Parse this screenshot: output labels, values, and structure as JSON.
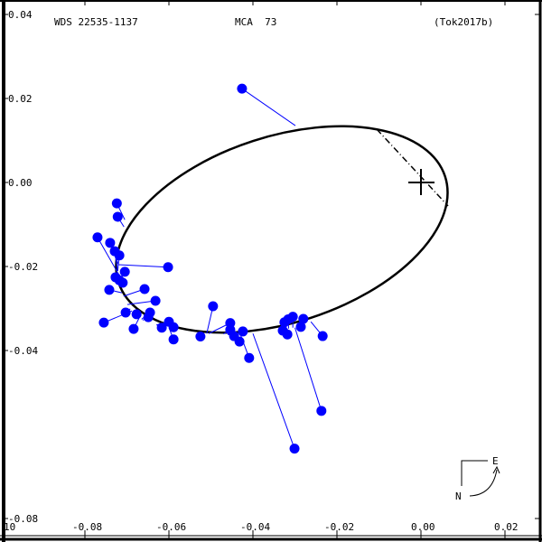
{
  "header": {
    "wds_id": "WDS 22535-1137",
    "discoverer": "MCA  73",
    "reference": "(Tok2017b)"
  },
  "compass": {
    "east_label": "E",
    "north_label": "N"
  },
  "colors": {
    "points": "#0000ff",
    "orbit": "#000000",
    "axes": "#000000",
    "background": "#ffffff"
  },
  "chart_data": {
    "type": "scatter",
    "title": "WDS 22535-1137   MCA  73   (Tok2017b)",
    "xlabel": "",
    "ylabel": "",
    "xlim": [
      -0.1,
      0.028
    ],
    "ylim": [
      -0.085,
      0.043
    ],
    "grid": false,
    "legend": "none",
    "x_ticks": [
      "-0.08",
      "-0.06",
      "-0.04",
      "-0.02",
      "0.00",
      "0.02"
    ],
    "y_ticks": [
      "0.04",
      "0.02",
      "0.00",
      "-0.02",
      "-0.04",
      "-0.08"
    ],
    "clipped_corner_label": "10",
    "primary_star": {
      "x": 0.0,
      "y": 0.0,
      "marker": "+"
    },
    "orbit_ellipse": {
      "center": [
        -0.0331,
        -0.0116
      ],
      "semi_major": 0.0409,
      "semi_minor": 0.0222,
      "rotation_deg": -18
    },
    "line_of_nodes": {
      "from": [
        -0.0105,
        0.0123
      ],
      "to": [
        0.0065,
        -0.006
      ],
      "style": "dash-dot"
    },
    "series": [
      {
        "name": "observations",
        "points": [
          {
            "x": -0.0426,
            "y": 0.0219,
            "ox": -0.0299,
            "oy": 0.0131
          },
          {
            "x": -0.0724,
            "y": -0.0054,
            "ox": -0.0705,
            "oy": -0.0093
          },
          {
            "x": -0.0722,
            "y": -0.0086,
            "ox": -0.0707,
            "oy": -0.011
          },
          {
            "x": -0.077,
            "y": -0.0135,
            "ox": -0.0718,
            "oy": -0.0226
          },
          {
            "x": -0.074,
            "y": -0.0148,
            "ox": -0.072,
            "oy": -0.02
          },
          {
            "x": -0.0729,
            "y": -0.0168,
            "ox": -0.0722,
            "oy": -0.0215
          },
          {
            "x": -0.0718,
            "y": -0.0178,
            "ox": -0.0722,
            "oy": -0.0215
          },
          {
            "x": -0.0602,
            "y": -0.0206,
            "ox": -0.072,
            "oy": -0.02
          },
          {
            "x": -0.0705,
            "y": -0.0217,
            "ox": -0.0718,
            "oy": -0.0237
          },
          {
            "x": -0.0727,
            "y": -0.023,
            "ox": -0.0718,
            "oy": -0.024
          },
          {
            "x": -0.0718,
            "y": -0.0237,
            "ox": -0.0718,
            "oy": -0.0245
          },
          {
            "x": -0.071,
            "y": -0.0243,
            "ox": -0.0716,
            "oy": -0.0252
          },
          {
            "x": -0.0742,
            "y": -0.026,
            "ox": -0.0712,
            "oy": -0.0267
          },
          {
            "x": -0.0658,
            "y": -0.0258,
            "ox": -0.0708,
            "oy": -0.0275
          },
          {
            "x": -0.0632,
            "y": -0.0286,
            "ox": -0.0699,
            "oy": -0.0295
          },
          {
            "x": -0.0755,
            "y": -0.0338,
            "ox": -0.0688,
            "oy": -0.031
          },
          {
            "x": -0.0703,
            "y": -0.0314,
            "ox": -0.0692,
            "oy": -0.0305
          },
          {
            "x": -0.0677,
            "y": -0.0318,
            "ox": -0.0684,
            "oy": -0.0318
          },
          {
            "x": -0.0645,
            "y": -0.0314,
            "ox": -0.0665,
            "oy": -0.033
          },
          {
            "x": -0.0649,
            "y": -0.0325,
            "ox": -0.0662,
            "oy": -0.0332
          },
          {
            "x": -0.0684,
            "y": -0.0353,
            "ox": -0.067,
            "oy": -0.0325
          },
          {
            "x": -0.06,
            "y": -0.0336,
            "ox": -0.0628,
            "oy": -0.0343
          },
          {
            "x": -0.0617,
            "y": -0.035,
            "ox": -0.063,
            "oy": -0.0343
          },
          {
            "x": -0.0589,
            "y": -0.0349,
            "ox": -0.06,
            "oy": -0.0353
          },
          {
            "x": -0.0589,
            "y": -0.0378,
            "ox": -0.0598,
            "oy": -0.0355
          },
          {
            "x": -0.0525,
            "y": -0.0371,
            "ox": -0.053,
            "oy": -0.0362
          },
          {
            "x": -0.0495,
            "y": -0.0299,
            "ox": -0.051,
            "oy": -0.0364
          },
          {
            "x": -0.0454,
            "y": -0.0339,
            "ox": -0.0505,
            "oy": -0.0364
          },
          {
            "x": -0.0454,
            "y": -0.0355,
            "ox": -0.047,
            "oy": -0.0365
          },
          {
            "x": -0.0445,
            "y": -0.037,
            "ox": -0.046,
            "oy": -0.0366
          },
          {
            "x": -0.0432,
            "y": -0.0383,
            "ox": -0.0445,
            "oy": -0.0366
          },
          {
            "x": -0.0424,
            "y": -0.0359,
            "ox": -0.043,
            "oy": -0.0366
          },
          {
            "x": -0.0409,
            "y": -0.0422,
            "ox": -0.043,
            "oy": -0.0366
          },
          {
            "x": -0.0301,
            "y": -0.0638,
            "ox": -0.04,
            "oy": -0.0364
          },
          {
            "x": -0.0329,
            "y": -0.0357,
            "ox": -0.0335,
            "oy": -0.0355
          },
          {
            "x": -0.0325,
            "y": -0.0337,
            "ox": -0.032,
            "oy": -0.0352
          },
          {
            "x": -0.0316,
            "y": -0.033,
            "ox": -0.0315,
            "oy": -0.0352
          },
          {
            "x": -0.0305,
            "y": -0.0324,
            "ox": -0.0305,
            "oy": -0.035
          },
          {
            "x": -0.0318,
            "y": -0.0366,
            "ox": -0.0318,
            "oy": -0.0352
          },
          {
            "x": -0.0286,
            "y": -0.0348,
            "ox": -0.029,
            "oy": -0.0346
          },
          {
            "x": -0.028,
            "y": -0.0329,
            "ox": -0.0285,
            "oy": -0.0344
          },
          {
            "x": -0.0237,
            "y": -0.0548,
            "ox": -0.03,
            "oy": -0.035
          },
          {
            "x": -0.0234,
            "y": -0.037,
            "ox": -0.0262,
            "oy": -0.0336
          }
        ]
      }
    ]
  }
}
